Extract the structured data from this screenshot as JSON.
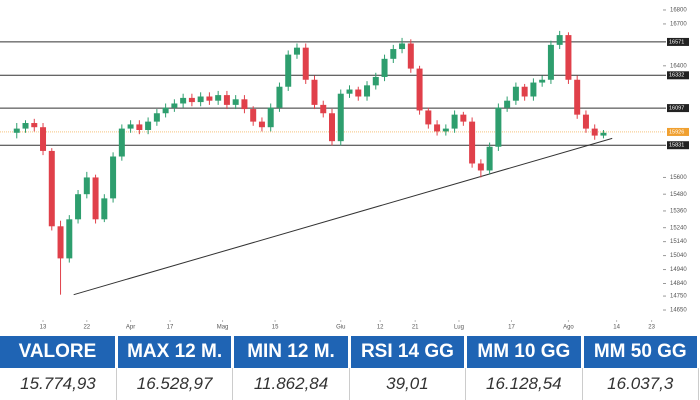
{
  "chart_data": {
    "type": "candlestick",
    "x": [
      0,
      1,
      2,
      3,
      4,
      5,
      6,
      7,
      8,
      9,
      10,
      11,
      12,
      13,
      14,
      15,
      16,
      17,
      18,
      19,
      20,
      21,
      22,
      23,
      24,
      25,
      26,
      27,
      28,
      29,
      30,
      31,
      32,
      33,
      34,
      35,
      36,
      37,
      38,
      39,
      40,
      41,
      42,
      43,
      44,
      45,
      46,
      47,
      48,
      49,
      50,
      51,
      52,
      53,
      54,
      55,
      56,
      57,
      58,
      59,
      60,
      61,
      62,
      63,
      64,
      65,
      66,
      67
    ],
    "close": [
      15950,
      15990,
      15960,
      15790,
      15250,
      15020,
      15300,
      15480,
      15600,
      15300,
      15450,
      15750,
      15950,
      15980,
      15940,
      16000,
      16060,
      16100,
      16130,
      16170,
      16140,
      16180,
      16150,
      16190,
      16120,
      16160,
      16090,
      16000,
      15960,
      16100,
      16250,
      16480,
      16530,
      16300,
      16120,
      16060,
      15860,
      16200,
      16230,
      16180,
      16260,
      16320,
      16450,
      16520,
      16560,
      16380,
      16080,
      15980,
      15930,
      15950,
      16050,
      16000,
      15700,
      15650,
      15820,
      16100,
      16150,
      16250,
      16180,
      16280,
      16300,
      16550,
      16620,
      16300,
      16050,
      15950,
      15900,
      15920
    ],
    "open": [
      15920,
      15950,
      15990,
      15960,
      15790,
      15250,
      15020,
      15300,
      15480,
      15600,
      15300,
      15450,
      15750,
      15950,
      15980,
      15940,
      16000,
      16060,
      16100,
      16130,
      16170,
      16140,
      16180,
      16150,
      16190,
      16120,
      16160,
      16090,
      16000,
      15960,
      16100,
      16250,
      16480,
      16530,
      16300,
      16120,
      16060,
      15860,
      16200,
      16230,
      16180,
      16260,
      16320,
      16450,
      16520,
      16560,
      16380,
      16080,
      15980,
      15930,
      15950,
      16050,
      16000,
      15700,
      15650,
      15820,
      16100,
      16150,
      16250,
      16180,
      16280,
      16300,
      16550,
      16620,
      16300,
      16050,
      15950,
      15900
    ],
    "high": [
      15990,
      16010,
      16020,
      15990,
      15810,
      15290,
      15330,
      15510,
      15640,
      15620,
      15480,
      15780,
      15980,
      16010,
      16010,
      16030,
      16090,
      16130,
      16160,
      16200,
      16200,
      16210,
      16210,
      16220,
      16220,
      16190,
      16190,
      16110,
      16030,
      16130,
      16280,
      16510,
      16560,
      16560,
      16330,
      16150,
      16090,
      16230,
      16260,
      16250,
      16290,
      16350,
      16480,
      16550,
      16600,
      16590,
      16400,
      16100,
      16010,
      15980,
      16080,
      16070,
      16030,
      15730,
      15850,
      16130,
      16180,
      16280,
      16270,
      16310,
      16330,
      16580,
      16650,
      16640,
      16330,
      16080,
      15980,
      15940
    ],
    "low": [
      15880,
      15920,
      15930,
      15760,
      15220,
      14760,
      14990,
      15270,
      15450,
      15270,
      15280,
      15420,
      15720,
      15920,
      15910,
      15910,
      15970,
      16030,
      16070,
      16100,
      16110,
      16110,
      16120,
      16120,
      16090,
      16090,
      16060,
      15970,
      15930,
      15930,
      16070,
      16220,
      16450,
      16270,
      16090,
      16030,
      15830,
      15830,
      16170,
      16150,
      16150,
      16230,
      16290,
      16420,
      16490,
      16350,
      16050,
      15950,
      15900,
      15900,
      15920,
      15970,
      15670,
      15600,
      15620,
      15790,
      16070,
      16120,
      16150,
      16150,
      16250,
      16270,
      16520,
      16270,
      16020,
      15920,
      15870,
      15880
    ],
    "up_color": "#2e9e6e",
    "down_color": "#e0404a",
    "xlim": [
      -1,
      73
    ],
    "xticks": [
      {
        "value": 3,
        "label": "13"
      },
      {
        "value": 8,
        "label": "22"
      },
      {
        "value": 13,
        "label": "Apr"
      },
      {
        "value": 17.5,
        "label": "17"
      },
      {
        "value": 23.5,
        "label": "Mag"
      },
      {
        "value": 29.5,
        "label": "15"
      },
      {
        "value": 37,
        "label": "Giu"
      },
      {
        "value": 41.5,
        "label": "12"
      },
      {
        "value": 45.5,
        "label": "21"
      },
      {
        "value": 50.5,
        "label": "Lug"
      },
      {
        "value": 56.5,
        "label": "17"
      },
      {
        "value": 63,
        "label": "Ago"
      },
      {
        "value": 68.5,
        "label": "14"
      },
      {
        "value": 72.5,
        "label": "23"
      }
    ],
    "ylim": [
      14600,
      16850
    ],
    "yticks": [
      16800,
      16700,
      16400,
      15600,
      15480,
      15360,
      15240,
      15140,
      15040,
      14940,
      14840,
      14750,
      14650
    ],
    "levels": [
      16571,
      16332,
      16097,
      15831
    ],
    "last_price": 15926,
    "last_price_color": "#f0a030",
    "trendline": {
      "x": [
        6.5,
        68
      ],
      "y": [
        14760,
        15880
      ]
    }
  },
  "table": {
    "headers": [
      "VALORE",
      "MAX 12 M.",
      "MIN 12 M.",
      "RSI 14 GG",
      "MM 10 GG",
      "MM 50 GG"
    ],
    "values": [
      "15.774,93",
      "16.528,97",
      "11.862,84",
      "39,01",
      "16.128,54",
      "16.037,3"
    ]
  }
}
